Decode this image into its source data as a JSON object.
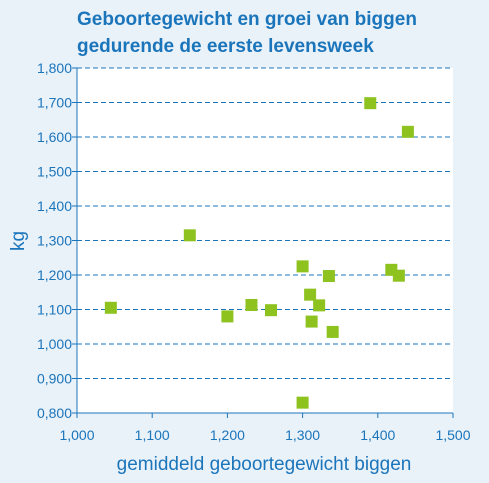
{
  "chart_data": {
    "type": "scatter",
    "title": [
      "Geboortegewicht en groei van biggen",
      "gedurende de eerste levensweek"
    ],
    "xlabel": "gemiddeld geboortegewicht biggen",
    "ylabel": "kg",
    "xlim": [
      1.0,
      1.5
    ],
    "ylim": [
      0.8,
      1.8
    ],
    "x_ticks": [
      "1,000",
      "1,100",
      "1,200",
      "1,300",
      "1,400",
      "1,500"
    ],
    "y_ticks": [
      "0,800",
      "0,900",
      "1,000",
      "1,100",
      "1,200",
      "1,300",
      "1,400",
      "1,500",
      "1,600",
      "1,700",
      "1,800"
    ],
    "grid": "horizontal dashed",
    "colors": {
      "background": "#e9f1f9",
      "plot_area": "#ffffff",
      "text": "#1b75bb",
      "axis": "#1b75bb",
      "grid": "#1b75bb",
      "marker": "#8dc21f"
    },
    "points": [
      {
        "x": 1.045,
        "y": 1.105
      },
      {
        "x": 1.15,
        "y": 1.315
      },
      {
        "x": 1.2,
        "y": 1.08
      },
      {
        "x": 1.232,
        "y": 1.113
      },
      {
        "x": 1.258,
        "y": 1.098
      },
      {
        "x": 1.3,
        "y": 1.225
      },
      {
        "x": 1.3,
        "y": 0.83
      },
      {
        "x": 1.31,
        "y": 1.143
      },
      {
        "x": 1.312,
        "y": 1.065
      },
      {
        "x": 1.322,
        "y": 1.112
      },
      {
        "x": 1.335,
        "y": 1.197
      },
      {
        "x": 1.34,
        "y": 1.035
      },
      {
        "x": 1.39,
        "y": 1.698
      },
      {
        "x": 1.418,
        "y": 1.215
      },
      {
        "x": 1.428,
        "y": 1.198
      },
      {
        "x": 1.44,
        "y": 1.615
      }
    ]
  }
}
